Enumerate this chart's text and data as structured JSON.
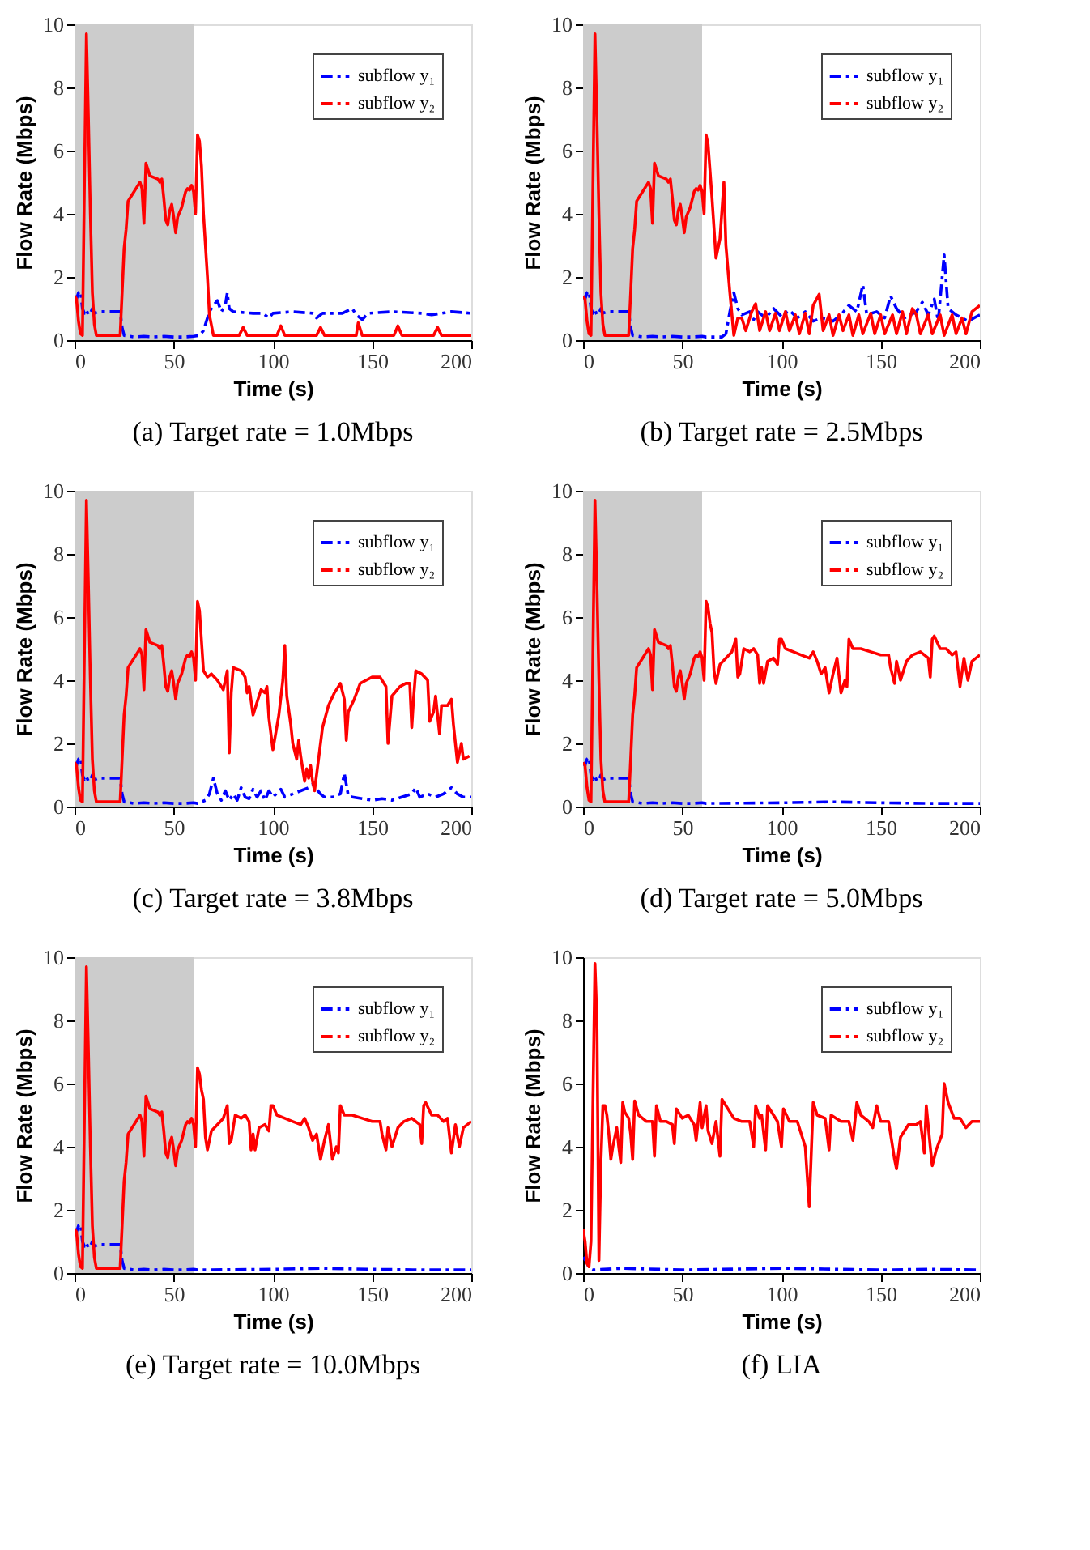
{
  "chart_data": [
    {
      "type": "line",
      "title": "(a) Target rate = 1.0Mbps",
      "xlabel": "Time (s)",
      "ylabel": "Flow Rate (Mbps)",
      "xlim": [
        0,
        200
      ],
      "ylim": [
        0,
        10
      ],
      "xticks": [
        0,
        50,
        100,
        150,
        200
      ],
      "yticks": [
        0,
        2,
        4,
        6,
        8,
        10
      ],
      "grid": false,
      "legend": "top right",
      "bands": [
        {
          "axis": "x",
          "from": 0,
          "to": 60,
          "color": "#cccccc"
        }
      ],
      "series": [
        {
          "name": "subflow y₁",
          "color": "#0000ff",
          "line_style": "dashed",
          "x": [
            0,
            1,
            2,
            3,
            4,
            5,
            6,
            7,
            8,
            9,
            10,
            12,
            15,
            20,
            23,
            24,
            25,
            30,
            35,
            40,
            45,
            50,
            55,
            60,
            63,
            65,
            68,
            70,
            72,
            74,
            76,
            77,
            78,
            80,
            90,
            95,
            98,
            100,
            110,
            120,
            122,
            125,
            135,
            140,
            142,
            145,
            148,
            160,
            175,
            180,
            190,
            200
          ],
          "values": [
            1.4,
            1.3,
            1.5,
            1.55,
            1.0,
            0.85,
            0.95,
            0.8,
            0.85,
            1.0,
            0.85,
            0.9,
            0.9,
            0.9,
            0.9,
            0.4,
            0.15,
            0.1,
            0.12,
            0.1,
            0.12,
            0.1,
            0.1,
            0.12,
            0.15,
            0.3,
            0.9,
            1.1,
            1.25,
            0.9,
            1.1,
            1.5,
            1.0,
            0.9,
            0.85,
            0.85,
            0.7,
            0.85,
            0.9,
            0.85,
            0.7,
            0.85,
            0.85,
            1.0,
            0.8,
            0.65,
            0.85,
            0.9,
            0.85,
            0.8,
            0.9,
            0.85
          ]
        },
        {
          "name": "subflow y₂",
          "color": "#ff0000",
          "line_style": "solid",
          "x": [
            0,
            1,
            2,
            3,
            4,
            5,
            6,
            7,
            8,
            9,
            10,
            11,
            15,
            20,
            23,
            24,
            25,
            26,
            27,
            30,
            32,
            33,
            34,
            35,
            36,
            37,
            38,
            40,
            42,
            43,
            44,
            45,
            46,
            47,
            48,
            49,
            50,
            51,
            52,
            54,
            56,
            57,
            58,
            59,
            60,
            61,
            62,
            63,
            64,
            65,
            67,
            68,
            70,
            83,
            85,
            87,
            102,
            104,
            106,
            122,
            124,
            126,
            142,
            143,
            145,
            161,
            163,
            165,
            181,
            183,
            185,
            200
          ],
          "values": [
            1.4,
            1.3,
            0.6,
            0.2,
            0.15,
            5,
            9.7,
            7,
            4,
            1.5,
            0.5,
            0.15,
            0.15,
            0.15,
            0.15,
            1.5,
            2.9,
            3.5,
            4.4,
            4.7,
            4.9,
            5.0,
            4.8,
            3.7,
            5.6,
            5.4,
            5.2,
            5.15,
            5.1,
            5.0,
            5.1,
            4.5,
            3.8,
            3.65,
            4.1,
            4.3,
            3.9,
            3.4,
            3.9,
            4.2,
            4.7,
            4.8,
            4.75,
            4.9,
            4.7,
            4.0,
            6.5,
            6.3,
            5.5,
            4,
            2,
            0.8,
            0.15,
            0.15,
            0.4,
            0.15,
            0.15,
            0.45,
            0.15,
            0.15,
            0.4,
            0.15,
            0.15,
            0.55,
            0.15,
            0.15,
            0.45,
            0.15,
            0.15,
            0.4,
            0.15,
            0.15
          ]
        }
      ]
    },
    {
      "type": "line",
      "title": "(b) Target rate = 2.5Mbps",
      "xlabel": "Time (s)",
      "ylabel": "Flow Rate (Mbps)",
      "xlim": [
        0,
        200
      ],
      "ylim": [
        0,
        10
      ],
      "xticks": [
        0,
        50,
        100,
        150,
        200
      ],
      "yticks": [
        0,
        2,
        4,
        6,
        8,
        10
      ],
      "grid": false,
      "legend": "top right",
      "bands": [
        {
          "axis": "x",
          "from": 0,
          "to": 60,
          "color": "#cccccc"
        }
      ],
      "series": [
        {
          "name": "subflow y₁",
          "color": "#0000ff",
          "line_style": "dashed",
          "x": [
            0,
            1,
            2,
            3,
            4,
            5,
            6,
            7,
            8,
            9,
            10,
            12,
            15,
            20,
            23,
            24,
            25,
            30,
            35,
            40,
            45,
            50,
            55,
            60,
            62,
            70,
            72,
            74,
            76,
            78,
            80,
            84,
            86,
            88,
            92,
            96,
            100,
            104,
            108,
            112,
            116,
            120,
            126,
            130,
            134,
            138,
            141,
            143,
            148,
            152,
            155,
            158,
            162,
            168,
            171,
            174,
            177,
            179,
            182,
            184,
            188,
            194,
            200
          ],
          "values": [
            1.4,
            1.3,
            1.5,
            1.55,
            1.0,
            0.85,
            0.95,
            0.8,
            0.85,
            1.0,
            0.85,
            0.9,
            0.9,
            0.9,
            0.9,
            0.4,
            0.15,
            0.1,
            0.12,
            0.1,
            0.12,
            0.1,
            0.1,
            0.12,
            0.1,
            0.1,
            0.2,
            0.9,
            1.5,
            1.0,
            0.8,
            0.9,
            0.65,
            0.9,
            0.7,
            1.0,
            0.75,
            0.95,
            0.7,
            0.9,
            0.6,
            0.7,
            0.6,
            0.8,
            1.1,
            0.9,
            1.75,
            0.8,
            0.9,
            0.7,
            1.4,
            1.0,
            0.7,
            0.9,
            1.2,
            0.8,
            1.3,
            0.6,
            2.7,
            1.0,
            0.8,
            0.6,
            0.8
          ]
        },
        {
          "name": "subflow y₂",
          "color": "#ff0000",
          "line_style": "solid",
          "x": [
            0,
            1,
            2,
            3,
            4,
            5,
            6,
            7,
            8,
            9,
            10,
            11,
            15,
            20,
            23,
            24,
            25,
            26,
            27,
            30,
            32,
            33,
            34,
            35,
            36,
            37,
            38,
            40,
            42,
            43,
            44,
            45,
            46,
            47,
            48,
            49,
            50,
            51,
            52,
            54,
            56,
            57,
            58,
            59,
            60,
            61,
            62,
            63,
            65,
            67,
            69,
            71,
            72,
            74,
            76,
            78,
            80,
            82,
            85,
            87,
            89,
            92,
            94,
            97,
            99,
            102,
            104,
            107,
            109,
            112,
            114,
            116,
            119,
            121,
            124,
            126,
            129,
            131,
            134,
            136,
            139,
            141,
            145,
            147,
            150,
            152,
            156,
            158,
            161,
            163,
            166,
            168,
            170,
            174,
            176,
            180,
            182,
            186,
            188,
            191,
            193,
            196,
            200
          ],
          "values": [
            1.4,
            1.3,
            0.6,
            0.2,
            0.15,
            5,
            9.7,
            7,
            4,
            1.5,
            0.5,
            0.15,
            0.15,
            0.15,
            0.15,
            1.5,
            2.9,
            3.5,
            4.4,
            4.7,
            4.9,
            5.0,
            4.8,
            3.7,
            5.6,
            5.4,
            5.2,
            5.15,
            5.1,
            5.0,
            5.1,
            4.5,
            3.8,
            3.65,
            4.1,
            4.3,
            3.9,
            3.4,
            3.9,
            4.2,
            4.7,
            4.8,
            4.75,
            4.9,
            4.7,
            4.0,
            6.5,
            6.2,
            4.5,
            2.6,
            3.2,
            5.0,
            3.0,
            1.5,
            0.15,
            0.7,
            0.7,
            0.3,
            0.9,
            1.15,
            0.3,
            0.9,
            0.3,
            0.85,
            0.3,
            0.9,
            0.3,
            0.8,
            0.2,
            0.85,
            0.2,
            1.1,
            1.45,
            0.3,
            0.8,
            0.15,
            0.8,
            0.3,
            0.8,
            0.15,
            0.8,
            0.2,
            0.85,
            0.2,
            0.8,
            0.2,
            0.8,
            0.2,
            0.9,
            0.2,
            1.0,
            0.8,
            0.2,
            0.8,
            0.2,
            0.8,
            0.15,
            0.8,
            0.2,
            0.7,
            0.2,
            0.9,
            1.1
          ]
        }
      ]
    },
    {
      "type": "line",
      "title": "(c) Target rate = 3.8Mbps",
      "xlabel": "Time (s)",
      "ylabel": "Flow Rate (Mbps)",
      "xlim": [
        0,
        200
      ],
      "ylim": [
        0,
        10
      ],
      "xticks": [
        0,
        50,
        100,
        150,
        200
      ],
      "yticks": [
        0,
        2,
        4,
        6,
        8,
        10
      ],
      "grid": false,
      "legend": "top right",
      "bands": [
        {
          "axis": "x",
          "from": 0,
          "to": 60,
          "color": "#cccccc"
        }
      ],
      "series": [
        {
          "name": "subflow y₁",
          "color": "#0000ff",
          "line_style": "dashed",
          "x": [
            0,
            1,
            2,
            3,
            4,
            5,
            6,
            7,
            8,
            9,
            10,
            12,
            15,
            20,
            23,
            24,
            25,
            30,
            35,
            40,
            45,
            50,
            55,
            60,
            62,
            66,
            68,
            70,
            72,
            74,
            76,
            78,
            80,
            82,
            84,
            86,
            88,
            90,
            92,
            94,
            96,
            98,
            100,
            104,
            106,
            110,
            114,
            118,
            120,
            122,
            124,
            126,
            130,
            134,
            136,
            138,
            140,
            145,
            150,
            155,
            160,
            165,
            170,
            172,
            174,
            178,
            182,
            186,
            190,
            193,
            196,
            200
          ],
          "values": [
            1.4,
            1.3,
            1.5,
            1.55,
            1.0,
            0.85,
            0.95,
            0.8,
            0.85,
            1.0,
            0.85,
            0.9,
            0.9,
            0.9,
            0.9,
            0.4,
            0.15,
            0.1,
            0.12,
            0.1,
            0.12,
            0.1,
            0.1,
            0.12,
            0.1,
            0.2,
            0.4,
            0.9,
            0.4,
            0.2,
            0.5,
            0.2,
            0.4,
            0.2,
            0.6,
            0.3,
            0.25,
            0.55,
            0.3,
            0.5,
            0.2,
            0.5,
            0.3,
            0.55,
            0.3,
            0.4,
            0.5,
            0.6,
            0.7,
            0.55,
            0.4,
            0.3,
            0.3,
            0.4,
            1.05,
            0.35,
            0.3,
            0.25,
            0.2,
            0.25,
            0.2,
            0.3,
            0.4,
            0.6,
            0.3,
            0.4,
            0.3,
            0.4,
            0.6,
            0.4,
            0.3,
            0.3
          ]
        },
        {
          "name": "subflow y₂",
          "color": "#ff0000",
          "line_style": "solid",
          "x": [
            0,
            1,
            2,
            3,
            4,
            5,
            6,
            7,
            8,
            9,
            10,
            11,
            15,
            20,
            23,
            24,
            25,
            26,
            27,
            30,
            32,
            33,
            34,
            35,
            36,
            37,
            38,
            40,
            42,
            43,
            44,
            45,
            46,
            47,
            48,
            49,
            50,
            51,
            52,
            54,
            56,
            57,
            58,
            59,
            60,
            61,
            62,
            63,
            65,
            67,
            69,
            72,
            74,
            75,
            77,
            78,
            79,
            80,
            84,
            86,
            87,
            88,
            90,
            92,
            94,
            96,
            97,
            98,
            100,
            103,
            105,
            106,
            107,
            109,
            110,
            112,
            113,
            114,
            116,
            117,
            118,
            119,
            120,
            121,
            123,
            125,
            128,
            131,
            134,
            136,
            137,
            138,
            141,
            144,
            147,
            150,
            154,
            157,
            158,
            160,
            164,
            167,
            169,
            170,
            171,
            172,
            175,
            178,
            179,
            181,
            182,
            184,
            185,
            188,
            190,
            191,
            193,
            195,
            196,
            199
          ],
          "values": [
            1.4,
            1.3,
            0.6,
            0.2,
            0.15,
            5,
            9.7,
            7,
            4,
            1.5,
            0.5,
            0.15,
            0.15,
            0.15,
            0.15,
            1.5,
            2.9,
            3.5,
            4.4,
            4.7,
            4.9,
            5.0,
            4.8,
            3.7,
            5.6,
            5.4,
            5.2,
            5.15,
            5.1,
            5.0,
            5.1,
            4.5,
            3.8,
            3.65,
            4.1,
            4.3,
            3.9,
            3.4,
            3.9,
            4.2,
            4.7,
            4.8,
            4.75,
            4.9,
            4.7,
            4.0,
            6.5,
            6.2,
            4.3,
            4.1,
            4.2,
            4.0,
            3.8,
            3.7,
            4.3,
            1.7,
            3.6,
            4.4,
            4.3,
            4.1,
            3.6,
            3.8,
            2.9,
            3.3,
            3.7,
            3.6,
            3.8,
            2.8,
            1.8,
            2.9,
            4.0,
            5.1,
            3.5,
            2.6,
            2.0,
            1.5,
            2.1,
            1.6,
            0.8,
            1.2,
            0.9,
            1.3,
            0.8,
            0.5,
            1.5,
            2.5,
            3.2,
            3.6,
            3.9,
            3.4,
            2.1,
            3.0,
            3.4,
            3.9,
            4.0,
            4.1,
            4.1,
            3.8,
            2.0,
            3.5,
            3.8,
            3.9,
            3.9,
            2.5,
            3.5,
            4.3,
            4.2,
            4.0,
            2.7,
            3.0,
            3.5,
            2.3,
            3.2,
            3.2,
            3.4,
            2.6,
            1.4,
            2.0,
            1.5,
            1.6
          ]
        }
      ]
    },
    {
      "type": "line",
      "title": "(d) Target rate = 5.0Mbps",
      "xlabel": "Time (s)",
      "ylabel": "Flow Rate (Mbps)",
      "xlim": [
        0,
        200
      ],
      "ylim": [
        0,
        10
      ],
      "xticks": [
        0,
        50,
        100,
        150,
        200
      ],
      "yticks": [
        0,
        2,
        4,
        6,
        8,
        10
      ],
      "grid": false,
      "legend": "top right",
      "bands": [
        {
          "axis": "x",
          "from": 0,
          "to": 60,
          "color": "#cccccc"
        }
      ],
      "series": [
        {
          "name": "subflow y₁",
          "color": "#0000ff",
          "line_style": "dashed",
          "x": [
            0,
            1,
            2,
            3,
            4,
            5,
            6,
            7,
            8,
            9,
            10,
            12,
            15,
            20,
            23,
            24,
            25,
            30,
            35,
            40,
            45,
            50,
            55,
            60,
            62,
            100,
            125,
            150,
            175,
            200
          ],
          "values": [
            1.4,
            1.3,
            1.5,
            1.55,
            1.0,
            0.85,
            0.95,
            0.8,
            0.85,
            1.0,
            0.85,
            0.9,
            0.9,
            0.9,
            0.9,
            0.4,
            0.15,
            0.1,
            0.12,
            0.1,
            0.12,
            0.1,
            0.1,
            0.12,
            0.1,
            0.12,
            0.15,
            0.12,
            0.1,
            0.1
          ]
        },
        {
          "name": "subflow y₂",
          "color": "#ff0000",
          "line_style": "solid",
          "x": [
            0,
            1,
            2,
            3,
            4,
            5,
            6,
            7,
            8,
            9,
            10,
            11,
            15,
            20,
            23,
            24,
            25,
            26,
            27,
            30,
            32,
            33,
            34,
            35,
            36,
            37,
            38,
            40,
            42,
            43,
            44,
            45,
            46,
            47,
            48,
            49,
            50,
            51,
            52,
            54,
            56,
            57,
            58,
            59,
            60,
            61,
            62,
            63,
            64,
            65,
            66,
            67,
            69,
            72,
            75,
            77,
            78,
            79,
            81,
            84,
            86,
            88,
            89,
            90,
            91,
            93,
            96,
            98,
            99,
            100,
            102,
            106,
            110,
            114,
            116,
            118,
            120,
            122,
            124,
            126,
            128,
            130,
            132,
            133,
            134,
            136,
            140,
            145,
            150,
            154,
            155,
            157,
            158,
            160,
            163,
            166,
            170,
            174,
            175,
            176,
            177,
            180,
            183,
            186,
            188,
            190,
            192,
            194,
            196,
            200
          ],
          "values": [
            1.4,
            1.3,
            0.6,
            0.2,
            0.15,
            5,
            9.7,
            7,
            4,
            1.5,
            0.5,
            0.15,
            0.15,
            0.15,
            0.15,
            1.5,
            2.9,
            3.5,
            4.4,
            4.7,
            4.9,
            5.0,
            4.8,
            3.7,
            5.6,
            5.4,
            5.2,
            5.15,
            5.1,
            5.0,
            5.1,
            4.5,
            3.8,
            3.65,
            4.1,
            4.3,
            3.9,
            3.4,
            3.9,
            4.2,
            4.7,
            4.8,
            4.75,
            4.9,
            4.7,
            4.0,
            6.5,
            6.3,
            5.8,
            5.5,
            4.3,
            3.9,
            4.5,
            4.7,
            4.9,
            5.3,
            4.1,
            4.2,
            5.0,
            4.9,
            5.0,
            4.8,
            3.9,
            4.4,
            3.9,
            4.6,
            4.7,
            4.5,
            5.3,
            5.3,
            5.0,
            4.9,
            4.8,
            4.7,
            4.9,
            4.6,
            4.2,
            4.4,
            3.6,
            4.2,
            4.7,
            3.6,
            4.0,
            3.8,
            5.3,
            5.0,
            5.0,
            4.9,
            4.8,
            4.8,
            4.4,
            3.9,
            4.6,
            4.0,
            4.6,
            4.8,
            4.9,
            4.7,
            4.1,
            5.3,
            5.4,
            5.0,
            5.0,
            4.8,
            4.9,
            3.8,
            4.7,
            4.0,
            4.6,
            4.8
          ]
        }
      ]
    },
    {
      "type": "line",
      "title": "(e) Target rate = 10.0Mbps",
      "xlabel": "Time (s)",
      "ylabel": "Flow Rate (Mbps)",
      "xlim": [
        0,
        200
      ],
      "ylim": [
        0,
        10
      ],
      "xticks": [
        0,
        50,
        100,
        150,
        200
      ],
      "yticks": [
        0,
        2,
        4,
        6,
        8,
        10
      ],
      "grid": false,
      "legend": "top right",
      "bands": [
        {
          "axis": "x",
          "from": 0,
          "to": 60,
          "color": "#cccccc"
        }
      ],
      "series": [
        {
          "name": "subflow y₁",
          "color": "#0000ff",
          "line_style": "dashed",
          "x": [
            0,
            1,
            2,
            3,
            4,
            5,
            6,
            7,
            8,
            9,
            10,
            12,
            15,
            20,
            23,
            24,
            25,
            30,
            35,
            40,
            45,
            50,
            55,
            60,
            62,
            100,
            125,
            150,
            175,
            200
          ],
          "values": [
            1.4,
            1.3,
            1.5,
            1.55,
            1.0,
            0.85,
            0.95,
            0.8,
            0.85,
            1.0,
            0.85,
            0.9,
            0.9,
            0.9,
            0.9,
            0.4,
            0.15,
            0.1,
            0.12,
            0.1,
            0.12,
            0.1,
            0.1,
            0.12,
            0.1,
            0.12,
            0.15,
            0.12,
            0.1,
            0.1
          ]
        },
        {
          "name": "subflow y₂",
          "color": "#ff0000",
          "line_style": "solid",
          "x": [
            0,
            1,
            2,
            3,
            4,
            5,
            6,
            7,
            8,
            9,
            10,
            11,
            15,
            20,
            23,
            24,
            25,
            26,
            27,
            30,
            32,
            33,
            34,
            35,
            36,
            37,
            38,
            40,
            42,
            43,
            44,
            45,
            46,
            47,
            48,
            49,
            50,
            51,
            52,
            54,
            56,
            57,
            58,
            59,
            60,
            61,
            62,
            63,
            64,
            65,
            66,
            67,
            69,
            72,
            75,
            77,
            78,
            79,
            81,
            84,
            86,
            88,
            89,
            90,
            91,
            93,
            96,
            98,
            99,
            100,
            102,
            106,
            110,
            114,
            116,
            118,
            120,
            122,
            124,
            126,
            128,
            130,
            132,
            133,
            134,
            136,
            140,
            145,
            150,
            154,
            155,
            157,
            158,
            160,
            163,
            166,
            170,
            174,
            175,
            176,
            177,
            180,
            183,
            186,
            188,
            190,
            192,
            194,
            196,
            200
          ],
          "values": [
            1.4,
            1.3,
            0.6,
            0.2,
            0.15,
            5,
            9.7,
            7,
            4,
            1.5,
            0.5,
            0.15,
            0.15,
            0.15,
            0.15,
            1.5,
            2.9,
            3.5,
            4.4,
            4.7,
            4.9,
            5.0,
            4.8,
            3.7,
            5.6,
            5.4,
            5.2,
            5.15,
            5.1,
            5.0,
            5.1,
            4.5,
            3.8,
            3.65,
            4.1,
            4.3,
            3.9,
            3.4,
            3.9,
            4.2,
            4.7,
            4.8,
            4.75,
            4.9,
            4.7,
            4.0,
            6.5,
            6.3,
            5.8,
            5.5,
            4.3,
            3.9,
            4.5,
            4.7,
            4.9,
            5.3,
            4.1,
            4.2,
            5.0,
            4.9,
            5.0,
            4.8,
            3.9,
            4.4,
            3.9,
            4.6,
            4.7,
            4.5,
            5.3,
            5.3,
            5.0,
            4.9,
            4.8,
            4.7,
            4.9,
            4.6,
            4.2,
            4.4,
            3.6,
            4.2,
            4.7,
            3.6,
            4.0,
            3.8,
            5.3,
            5.0,
            5.0,
            4.9,
            4.8,
            4.8,
            4.4,
            3.9,
            4.6,
            4.0,
            4.6,
            4.8,
            4.9,
            4.7,
            4.1,
            5.3,
            5.4,
            5.0,
            5.0,
            4.8,
            4.9,
            3.8,
            4.7,
            4.0,
            4.6,
            4.8
          ]
        }
      ]
    },
    {
      "type": "line",
      "title": "(f) LIA",
      "xlabel": "Time (s)",
      "ylabel": "Flow Rate (Mbps)",
      "xlim": [
        0,
        200
      ],
      "ylim": [
        0,
        10
      ],
      "xticks": [
        0,
        50,
        100,
        150,
        200
      ],
      "yticks": [
        0,
        2,
        4,
        6,
        8,
        10
      ],
      "grid": false,
      "legend": "top right",
      "series": [
        {
          "name": "subflow y₁",
          "color": "#0000ff",
          "line_style": "dashed",
          "x": [
            0,
            2,
            3,
            5,
            20,
            50,
            100,
            150,
            175,
            200
          ],
          "values": [
            0.5,
            0.35,
            0.15,
            0.1,
            0.15,
            0.1,
            0.15,
            0.1,
            0.12,
            0.1
          ]
        },
        {
          "name": "subflow y₂",
          "color": "#ff0000",
          "line_style": "solid",
          "x": [
            0,
            1,
            2,
            3,
            4,
            5,
            6,
            7,
            8,
            9,
            10,
            11,
            12,
            13,
            14,
            15,
            17,
            18,
            19,
            20,
            21,
            23,
            24,
            25,
            26,
            28,
            32,
            35,
            36,
            37,
            39,
            42,
            45,
            46,
            47,
            50,
            53,
            56,
            57,
            59,
            60,
            62,
            63,
            65,
            67,
            69,
            70,
            72,
            76,
            80,
            84,
            86,
            87,
            89,
            90,
            92,
            93,
            96,
            98,
            100,
            101,
            104,
            108,
            112,
            114,
            116,
            118,
            122,
            124,
            125,
            130,
            134,
            136,
            138,
            140,
            144,
            146,
            148,
            150,
            154,
            157,
            158,
            160,
            164,
            168,
            170,
            172,
            173,
            175,
            176,
            178,
            181,
            182,
            184,
            187,
            190,
            193,
            196,
            200
          ],
          "values": [
            1.4,
            1.0,
            0.3,
            0.2,
            1.0,
            5.5,
            9.8,
            8,
            0.4,
            3.5,
            5.3,
            5.3,
            5.0,
            4.4,
            3.6,
            4.0,
            4.6,
            4.0,
            3.5,
            5.4,
            5.1,
            4.9,
            4.4,
            3.6,
            5.45,
            5.0,
            4.8,
            4.8,
            3.7,
            5.3,
            4.8,
            4.8,
            4.7,
            4.1,
            5.2,
            4.9,
            5.0,
            4.7,
            4.2,
            5.4,
            4.6,
            5.3,
            4.5,
            4.1,
            4.8,
            3.7,
            5.5,
            5.3,
            4.9,
            4.8,
            4.8,
            4.0,
            5.3,
            4.9,
            5.0,
            3.9,
            5.3,
            5.0,
            4.8,
            4.0,
            5.2,
            4.8,
            4.8,
            4.0,
            2.1,
            5.4,
            5.0,
            4.9,
            3.9,
            5.0,
            4.8,
            4.8,
            4.2,
            5.4,
            5.0,
            4.8,
            4.6,
            5.3,
            4.8,
            4.8,
            3.6,
            3.3,
            4.3,
            4.7,
            4.7,
            4.8,
            3.8,
            5.3,
            4.0,
            3.4,
            3.9,
            4.4,
            6.0,
            5.4,
            4.9,
            4.9,
            4.6,
            4.8,
            4.8
          ]
        }
      ]
    }
  ]
}
